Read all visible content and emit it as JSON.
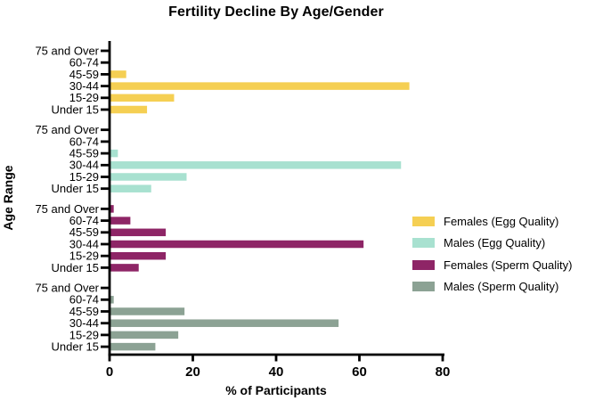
{
  "chart_data": {
    "type": "bar",
    "orientation": "horizontal",
    "title": "Fertility Decline By Age/Gender",
    "xlabel": "% of Participants",
    "ylabel": "Age Range",
    "xlim": [
      0,
      80
    ],
    "x_ticks": [
      0,
      20,
      40,
      60,
      80
    ],
    "grid": false,
    "legend_position": "right-middle",
    "axis_color": "#000000",
    "categories": [
      "75 and Over",
      "60-74",
      "45-59",
      "30-44",
      "15-29",
      "Under 15"
    ],
    "series": [
      {
        "name": "Females (Egg Quality)",
        "color": "#F5CF53",
        "values": [
          0,
          0,
          4,
          72,
          15.5,
          9
        ]
      },
      {
        "name": "Males (Egg Quality)",
        "color": "#A8E1D0",
        "values": [
          0,
          0,
          2,
          70,
          18.5,
          10
        ]
      },
      {
        "name": "Females (Sperm Quality)",
        "color": "#8E2566",
        "values": [
          1,
          5,
          13.5,
          61,
          13.5,
          7
        ]
      },
      {
        "name": "Males (Sperm Quality)",
        "color": "#8CA294",
        "values": [
          0,
          1,
          18,
          55,
          16.5,
          11
        ]
      }
    ]
  }
}
